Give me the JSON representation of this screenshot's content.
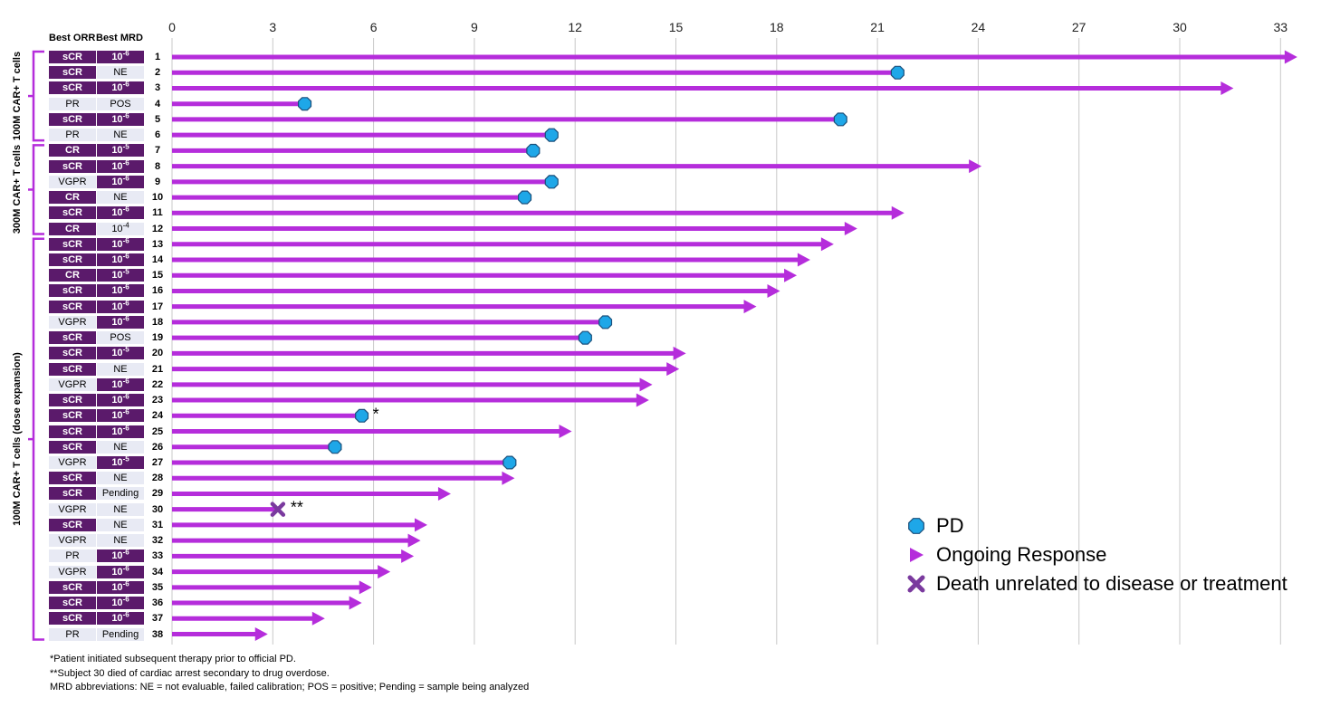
{
  "chart_data": {
    "type": "bar",
    "orientation": "horizontal",
    "x_ticks": [
      "0",
      "3",
      "6",
      "9",
      "12",
      "15",
      "18",
      "21",
      "24",
      "27",
      "30",
      "33"
    ],
    "xlim": [
      0,
      33.5
    ],
    "grid": "vertical",
    "headers": {
      "orr": "Best ORR",
      "mrd": "Best MRD"
    },
    "groups": [
      {
        "label": "100M CAR+ T cells",
        "first": 1,
        "last": 6
      },
      {
        "label": "300M CAR+ T cells",
        "first": 7,
        "last": 12
      },
      {
        "label": "100M CAR+ T cells (dose expansion)",
        "first": 13,
        "last": 38
      }
    ],
    "rows": [
      {
        "id": "1",
        "orr": "sCR",
        "mrd": "10-6",
        "value": 33.5,
        "end": "ongoing"
      },
      {
        "id": "2",
        "orr": "sCR",
        "mrd": "NE",
        "value": 21.6,
        "end": "pd"
      },
      {
        "id": "3",
        "orr": "sCR",
        "mrd": "10-6",
        "value": 31.6,
        "end": "ongoing"
      },
      {
        "id": "4",
        "orr": "PR",
        "mrd": "POS",
        "value": 3.95,
        "end": "pd"
      },
      {
        "id": "5",
        "orr": "sCR",
        "mrd": "10-6",
        "value": 19.9,
        "end": "pd"
      },
      {
        "id": "6",
        "orr": "PR",
        "mrd": "NE",
        "value": 11.3,
        "end": "pd"
      },
      {
        "id": "7",
        "orr": "CR",
        "mrd": "10-5",
        "value": 10.75,
        "end": "pd"
      },
      {
        "id": "8",
        "orr": "sCR",
        "mrd": "10-6",
        "value": 24.1,
        "end": "ongoing"
      },
      {
        "id": "9",
        "orr": "VGPR",
        "mrd": "10-6",
        "value": 11.3,
        "end": "pd"
      },
      {
        "id": "10",
        "orr": "CR",
        "mrd": "NE",
        "value": 10.5,
        "end": "pd"
      },
      {
        "id": "11",
        "orr": "sCR",
        "mrd": "10-6",
        "value": 21.8,
        "end": "ongoing"
      },
      {
        "id": "12",
        "orr": "CR",
        "mrd": "10-4",
        "value": 20.4,
        "end": "ongoing"
      },
      {
        "id": "13",
        "orr": "sCR",
        "mrd": "10-6",
        "value": 19.7,
        "end": "ongoing"
      },
      {
        "id": "14",
        "orr": "sCR",
        "mrd": "10-6",
        "value": 19.0,
        "end": "ongoing"
      },
      {
        "id": "15",
        "orr": "CR",
        "mrd": "10-5",
        "value": 18.6,
        "end": "ongoing"
      },
      {
        "id": "16",
        "orr": "sCR",
        "mrd": "10-6",
        "value": 18.1,
        "end": "ongoing"
      },
      {
        "id": "17",
        "orr": "sCR",
        "mrd": "10-6",
        "value": 17.4,
        "end": "ongoing"
      },
      {
        "id": "18",
        "orr": "VGPR",
        "mrd": "10-6",
        "value": 12.9,
        "end": "pd"
      },
      {
        "id": "19",
        "orr": "sCR",
        "mrd": "POS",
        "value": 12.3,
        "end": "pd"
      },
      {
        "id": "20",
        "orr": "sCR",
        "mrd": "10-5",
        "value": 15.3,
        "end": "ongoing"
      },
      {
        "id": "21",
        "orr": "sCR",
        "mrd": "NE",
        "value": 15.1,
        "end": "ongoing"
      },
      {
        "id": "22",
        "orr": "VGPR",
        "mrd": "10-6",
        "value": 14.3,
        "end": "ongoing"
      },
      {
        "id": "23",
        "orr": "sCR",
        "mrd": "10-6",
        "value": 14.2,
        "end": "ongoing"
      },
      {
        "id": "24",
        "orr": "sCR",
        "mrd": "10-6",
        "value": 5.65,
        "end": "pd",
        "mark": "*"
      },
      {
        "id": "25",
        "orr": "sCR",
        "mrd": "10-6",
        "value": 11.9,
        "end": "ongoing"
      },
      {
        "id": "26",
        "orr": "sCR",
        "mrd": "NE",
        "value": 4.85,
        "end": "pd"
      },
      {
        "id": "27",
        "orr": "VGPR",
        "mrd": "10-5",
        "value": 10.05,
        "end": "pd"
      },
      {
        "id": "28",
        "orr": "sCR",
        "mrd": "NE",
        "value": 10.2,
        "end": "ongoing"
      },
      {
        "id": "29",
        "orr": "sCR",
        "mrd": "Pending",
        "value": 8.3,
        "end": "ongoing"
      },
      {
        "id": "30",
        "orr": "VGPR",
        "mrd": "NE",
        "value": 3.15,
        "end": "death",
        "mark": "**"
      },
      {
        "id": "31",
        "orr": "sCR",
        "mrd": "NE",
        "value": 7.6,
        "end": "ongoing"
      },
      {
        "id": "32",
        "orr": "VGPR",
        "mrd": "NE",
        "value": 7.4,
        "end": "ongoing"
      },
      {
        "id": "33",
        "orr": "PR",
        "mrd": "10-6",
        "value": 7.2,
        "end": "ongoing"
      },
      {
        "id": "34",
        "orr": "VGPR",
        "mrd": "10-6",
        "value": 6.5,
        "end": "ongoing"
      },
      {
        "id": "35",
        "orr": "sCR",
        "mrd": "10-6",
        "value": 5.95,
        "end": "ongoing"
      },
      {
        "id": "36",
        "orr": "sCR",
        "mrd": "10-6",
        "value": 5.65,
        "end": "ongoing"
      },
      {
        "id": "37",
        "orr": "sCR",
        "mrd": "10-6",
        "value": 4.55,
        "end": "ongoing"
      },
      {
        "id": "38",
        "orr": "PR",
        "mrd": "Pending",
        "value": 2.85,
        "end": "ongoing"
      }
    ],
    "legend": [
      {
        "key": "pd",
        "label": "PD"
      },
      {
        "key": "ongoing",
        "label": "Ongoing Response"
      },
      {
        "key": "death",
        "label": "Death unrelated to disease or treatment"
      }
    ],
    "legend_placement": "bottom-right",
    "colors": {
      "bar": "#b52ddb",
      "pd_fill": "#1ea7e8",
      "pd_stroke": "#1b4f7a",
      "death": "#7a3a9e",
      "dark_cell": "#5b1a6b",
      "light_cell": "#e8eaf4",
      "bracket": "#b52ddb",
      "grid": "#c8c8c8"
    },
    "footnotes": [
      "*Patient initiated subsequent therapy prior to official PD.",
      "**Subject 30 died of cardiac arrest secondary to drug overdose.",
      "MRD abbreviations: NE = not evaluable, failed calibration; POS = positive; Pending = sample being analyzed"
    ]
  }
}
